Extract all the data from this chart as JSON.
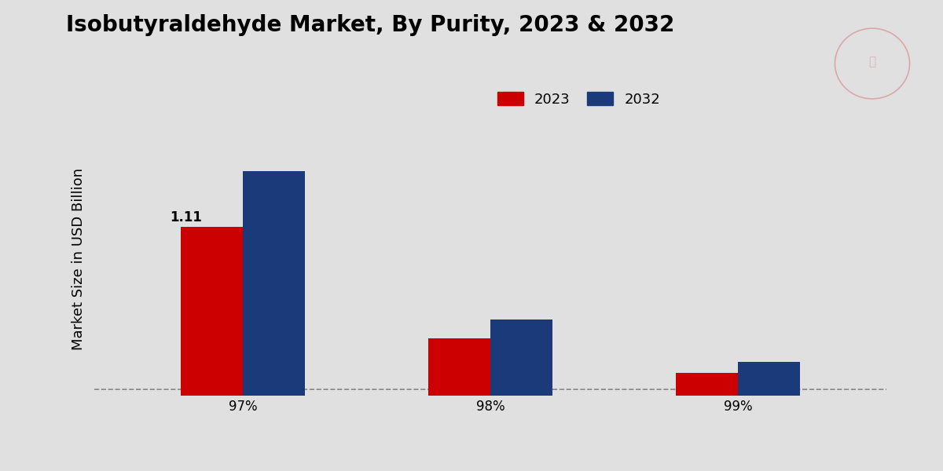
{
  "title": "Isobutyraldehyde Market, By Purity, 2023 & 2032",
  "ylabel": "Market Size in USD Billion",
  "categories": [
    "97%",
    "98%",
    "99%"
  ],
  "values_2023": [
    1.11,
    0.38,
    0.15
  ],
  "values_2032": [
    1.48,
    0.5,
    0.22
  ],
  "color_2023": "#cc0000",
  "color_2032": "#1a3a7a",
  "bar_width": 0.25,
  "bar_label_2023": "1.11",
  "legend_labels": [
    "2023",
    "2032"
  ],
  "background_color": "#e0e0e0",
  "title_fontsize": 20,
  "axis_label_fontsize": 13,
  "tick_fontsize": 12,
  "legend_fontsize": 13,
  "annotation_fontsize": 12,
  "ylim": [
    0,
    1.8
  ],
  "dashed_line_y": 0.04,
  "bottom_bar_color": "#cc0000"
}
